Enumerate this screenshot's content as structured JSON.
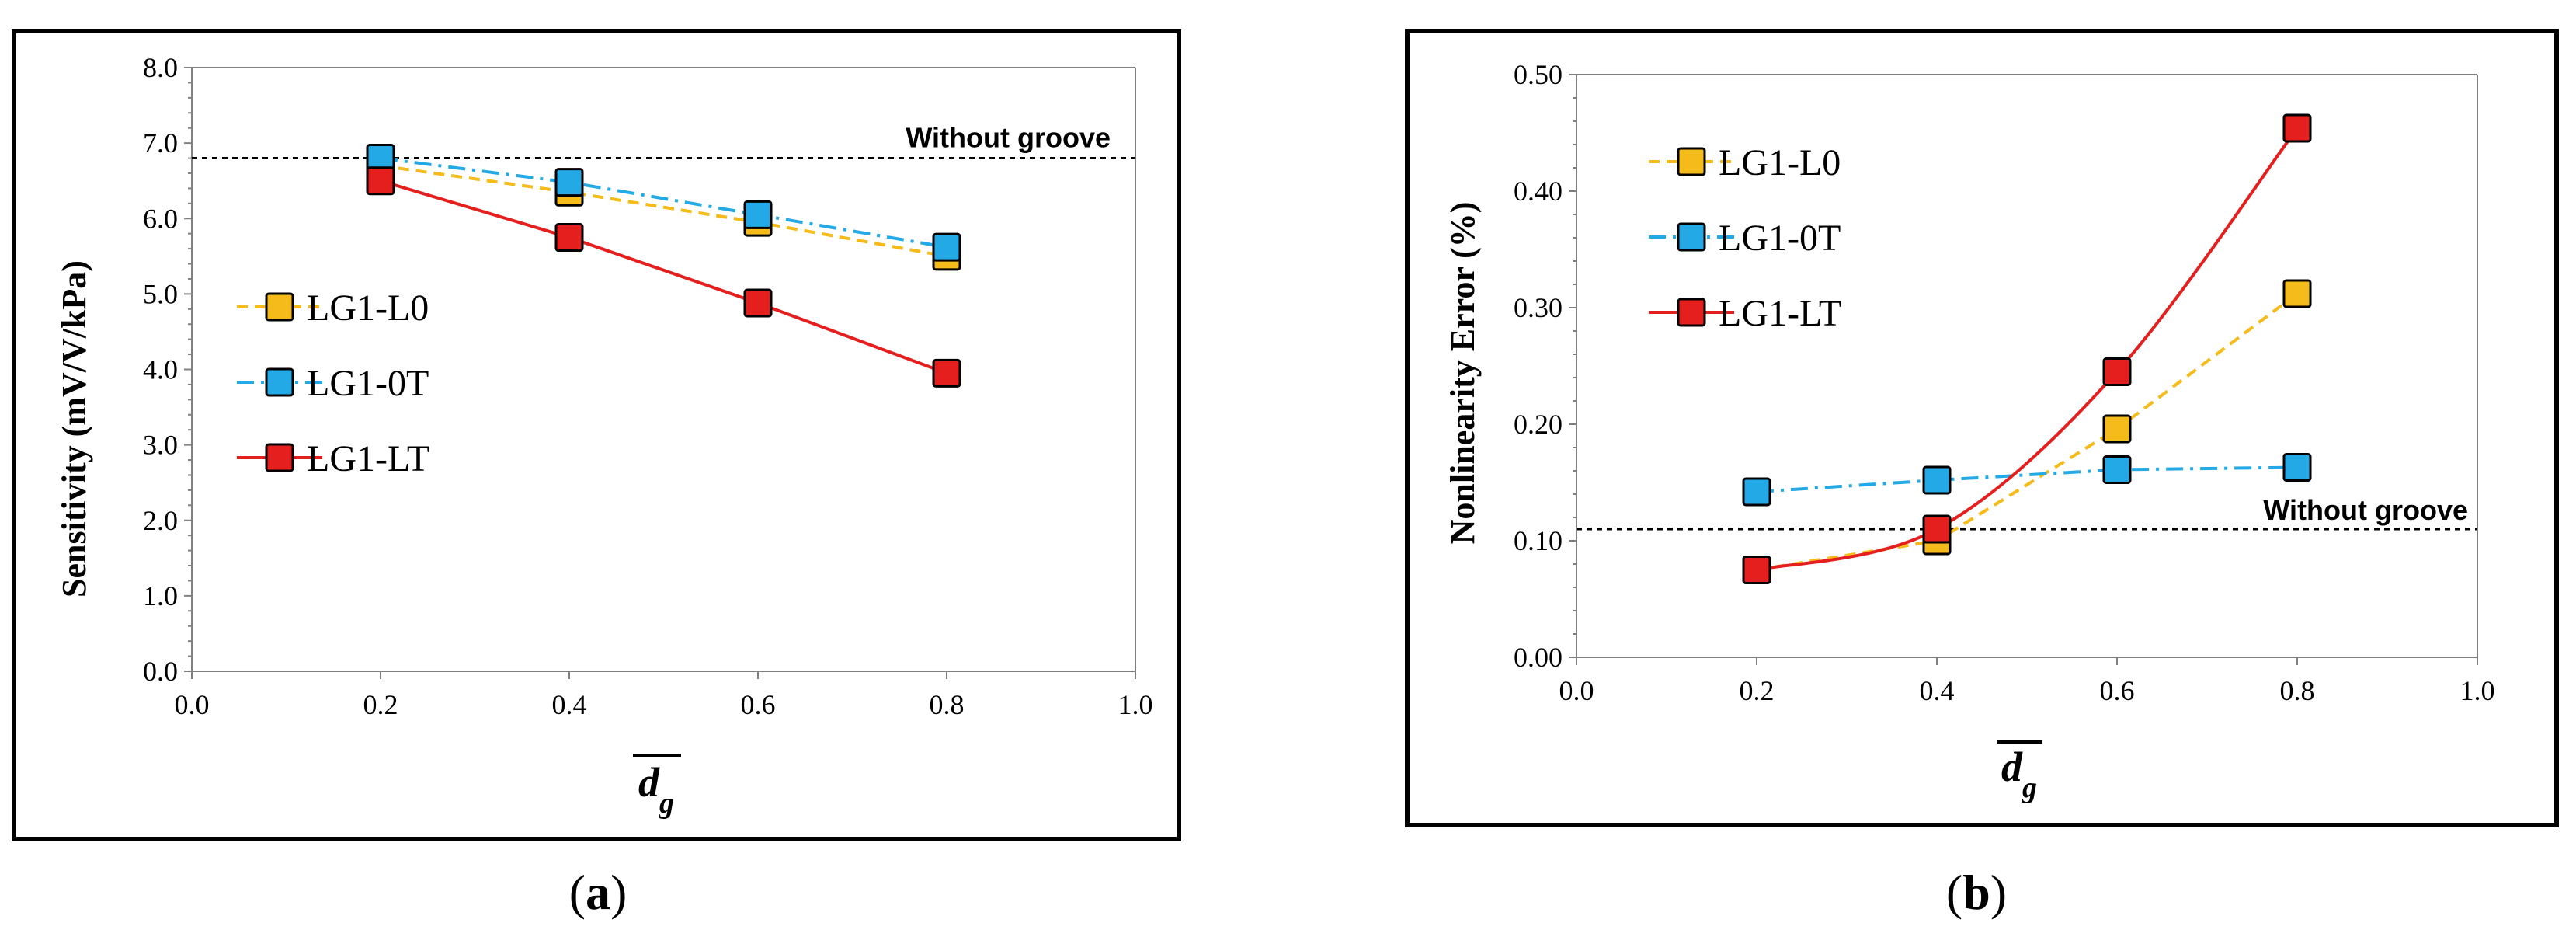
{
  "chart_data": [
    {
      "type": "line",
      "id": "a",
      "caption": {
        "open": "(",
        "letter": "a",
        "close": ")"
      },
      "xlabel": {
        "base": "d",
        "sub": "g"
      },
      "ylabel": "Sensitivity (mV/V/kPa)",
      "xlim": [
        0,
        1.0
      ],
      "ylim": [
        0,
        8.0
      ],
      "xticks": [
        "0.0",
        "0.2",
        "0.4",
        "0.6",
        "0.8",
        "1.0"
      ],
      "yticks": [
        "0.0",
        "1.0",
        "2.0",
        "3.0",
        "4.0",
        "5.0",
        "6.0",
        "7.0",
        "8.0"
      ],
      "reference": {
        "label": "Without groove",
        "value": 6.8
      },
      "legend_position": "center-left",
      "x": [
        0.2,
        0.4,
        0.6,
        0.8
      ],
      "series": [
        {
          "name": "LG1-L0",
          "values": [
            6.7,
            6.35,
            5.95,
            5.5
          ],
          "color": "#F5BB1A",
          "dash": "dashed",
          "smooth": false
        },
        {
          "name": "LG1-0T",
          "values": [
            6.8,
            6.48,
            6.05,
            5.62
          ],
          "color": "#23A9E6",
          "dash": "dashdot",
          "smooth": false
        },
        {
          "name": "LG1-LT",
          "values": [
            6.5,
            5.75,
            4.88,
            3.95
          ],
          "color": "#E51E1E",
          "dash": "solid",
          "smooth": false
        }
      ]
    },
    {
      "type": "line",
      "id": "b",
      "caption": {
        "open": "(",
        "letter": "b",
        "close": ")"
      },
      "xlabel": {
        "base": "d",
        "sub": "g"
      },
      "ylabel": "Nonlinearity Error (%)",
      "xlim": [
        0,
        1.0
      ],
      "ylim": [
        0,
        0.5
      ],
      "xticks": [
        "0.0",
        "0.2",
        "0.4",
        "0.6",
        "0.8",
        "1.0"
      ],
      "yticks": [
        "0.00",
        "0.10",
        "0.20",
        "0.30",
        "0.40",
        "0.50"
      ],
      "reference": {
        "label": "Without groove",
        "value": 0.11
      },
      "legend_position": "top-left",
      "x": [
        0.2,
        0.4,
        0.6,
        0.8
      ],
      "series": [
        {
          "name": "LG1-L0",
          "values": [
            0.075,
            0.1,
            0.196,
            0.312
          ],
          "color": "#F5BB1A",
          "dash": "dashed",
          "smooth": false
        },
        {
          "name": "LG1-0T",
          "values": [
            0.142,
            0.152,
            0.161,
            0.163
          ],
          "color": "#23A9E6",
          "dash": "dashdot",
          "smooth": false
        },
        {
          "name": "LG1-LT",
          "values": [
            0.075,
            0.11,
            0.245,
            0.454
          ],
          "color": "#E51E1E",
          "dash": "solid",
          "smooth": true
        }
      ]
    }
  ]
}
